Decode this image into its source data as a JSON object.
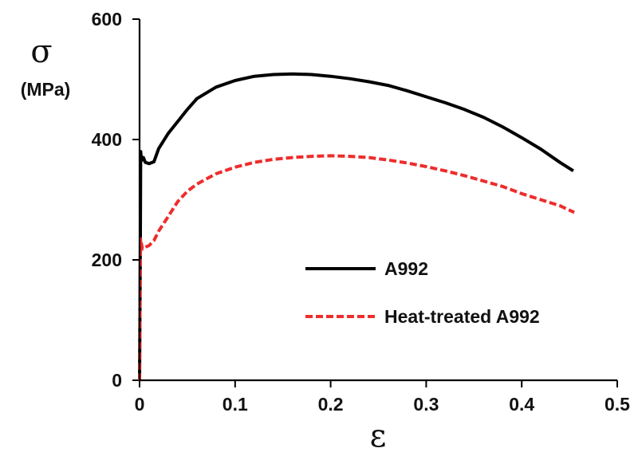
{
  "chart_data": {
    "type": "line",
    "title": "",
    "xlabel": "ε",
    "ylabel": "σ",
    "ylabel_unit": "(MPa)",
    "xlim": [
      0,
      0.5
    ],
    "ylim": [
      0,
      600
    ],
    "x_ticks": [
      0,
      0.1,
      0.2,
      0.3,
      0.4,
      0.5
    ],
    "x_tick_labels": [
      "0",
      "0.1",
      "0.2",
      "0.3",
      "0.4",
      "0.5"
    ],
    "y_ticks": [
      0,
      200,
      400,
      600
    ],
    "y_tick_labels": [
      "0",
      "200",
      "400",
      "600"
    ],
    "grid": false,
    "legend_position": "center-right",
    "series": [
      {
        "name": "A992",
        "color": "#000000",
        "dash": "solid",
        "x": [
          0,
          0.0008,
          0.0012,
          0.002,
          0.004,
          0.006,
          0.01,
          0.015,
          0.02,
          0.03,
          0.04,
          0.05,
          0.06,
          0.08,
          0.1,
          0.12,
          0.14,
          0.16,
          0.18,
          0.2,
          0.22,
          0.24,
          0.26,
          0.28,
          0.3,
          0.32,
          0.34,
          0.36,
          0.38,
          0.4,
          0.42,
          0.44,
          0.454
        ],
        "y": [
          0,
          240,
          380,
          365,
          370,
          362,
          360,
          363,
          385,
          410,
          430,
          450,
          468,
          487,
          498,
          505,
          508,
          509,
          508,
          505,
          501,
          496,
          490,
          481,
          471,
          461,
          450,
          437,
          421,
          403,
          384,
          362,
          348
        ]
      },
      {
        "name": "Heat-treated A992",
        "color": "#ee2c2c",
        "dash": "dashed",
        "x": [
          0,
          0.0008,
          0.001,
          0.003,
          0.006,
          0.01,
          0.015,
          0.02,
          0.03,
          0.04,
          0.05,
          0.06,
          0.08,
          0.1,
          0.12,
          0.14,
          0.16,
          0.18,
          0.2,
          0.22,
          0.24,
          0.26,
          0.28,
          0.3,
          0.32,
          0.34,
          0.36,
          0.38,
          0.4,
          0.42,
          0.44,
          0.455
        ],
        "y": [
          0,
          200,
          235,
          218,
          221,
          224,
          232,
          248,
          272,
          297,
          314,
          326,
          343,
          354,
          362,
          367,
          370,
          372,
          373,
          372,
          370,
          366,
          361,
          355,
          348,
          340,
          331,
          322,
          310,
          300,
          290,
          279
        ]
      }
    ]
  }
}
